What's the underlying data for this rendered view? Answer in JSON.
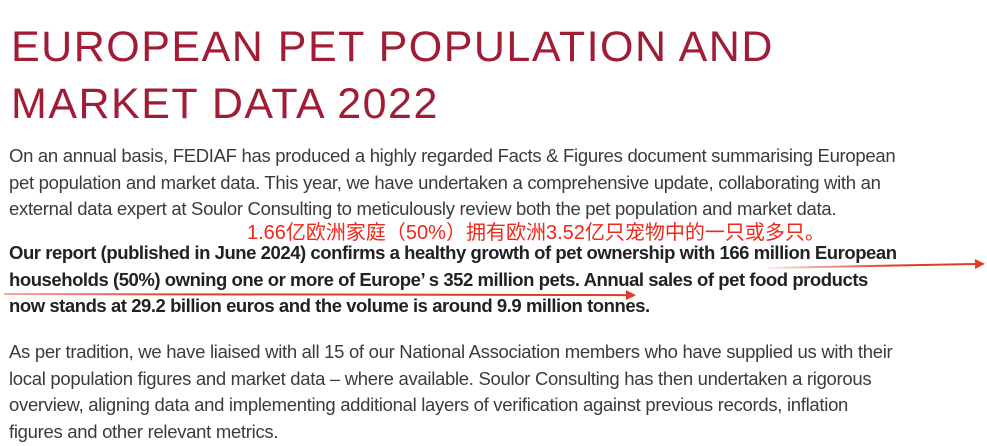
{
  "doc": {
    "title": {
      "lines": [
        "EUROPEAN PET POPULATION AND",
        "MARKET DATA 2022"
      ]
    },
    "paragraphs": {
      "intro": {
        "lines": [
          "On an annual basis, FEDIAF has produced a highly regarded Facts & Figures document summarising European",
          "pet population and market data. This year, we have undertaken a comprehensive update, collaborating with an",
          "external data expert at Soulor Consulting to meticulously review both the pet population and market data."
        ]
      },
      "report": {
        "lines": [
          "Our report (published in June 2024) confirms a healthy growth of pet ownership with 166 million European",
          "households (50%) owning one or more of Europe’ s 352 million pets. Annual sales of pet food products",
          "now stands at 29.2 billion euros and the volume is around 9.9 million tonnes."
        ]
      },
      "tradition": {
        "lines": [
          "As per tradition, we have liaised with all 15 of our National Association members who have supplied us with their",
          "local population figures and market data – where available. Soulor Consulting has then undertaken a rigorous",
          "overview, aligning data and implementing additional layers of verification against previous records, inflation",
          "figures and other relevant metrics."
        ]
      }
    },
    "annotation": {
      "text": "1.66亿欧洲家庭（50%）拥有欧洲3.52亿只宠物中的一只或多只。"
    },
    "key_figures": {
      "households_millions": "166",
      "households_share": "50%",
      "pets_millions": "352",
      "annual_sales": "29.2 billion euros",
      "volume": "9.9 million tonnes",
      "report_published": "June 2024",
      "national_association_members": "15"
    },
    "colors": {
      "heading_red": "#a01d35",
      "body_text": "#3b3b3b",
      "bold_text": "#222222",
      "annotation_red": "#f3261a",
      "arrow_red": "#e23b2a",
      "background": "#ffffff"
    }
  }
}
